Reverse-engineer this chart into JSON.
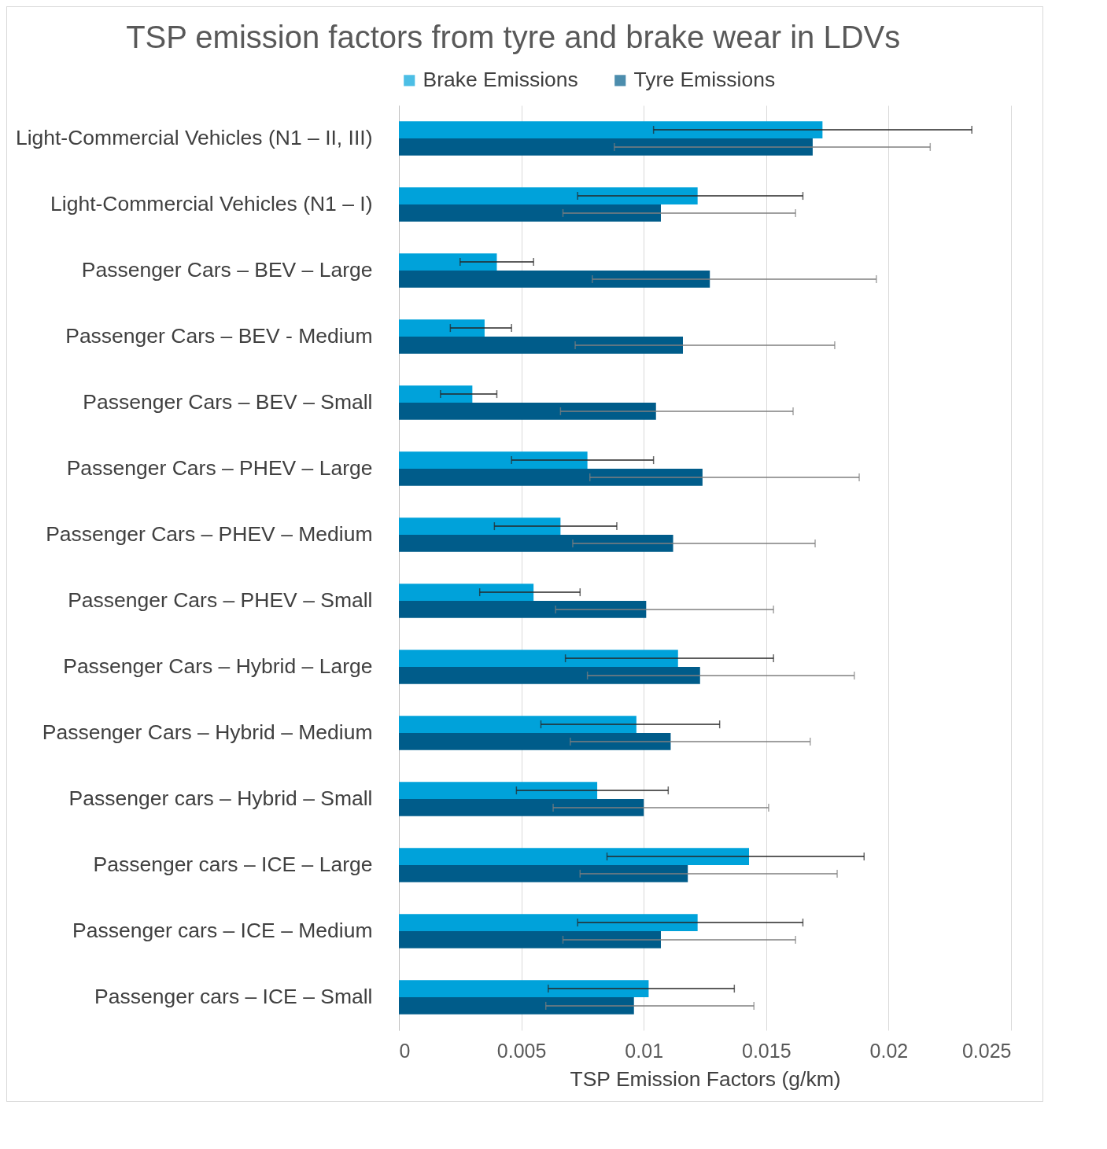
{
  "chart_data": {
    "type": "bar",
    "orientation": "horizontal",
    "title": "TSP emission factors from tyre and brake wear in LDVs",
    "xlabel": "TSP Emission Factors (g/km)",
    "categories": [
      "Light-Commercial Vehicles (N1 – II, III)",
      "Light-Commercial Vehicles (N1 – I)",
      "Passenger Cars – BEV – Large",
      "Passenger Cars – BEV - Medium",
      "Passenger Cars – BEV – Small",
      "Passenger Cars – PHEV – Large",
      "Passenger Cars – PHEV – Medium",
      "Passenger Cars – PHEV – Small",
      "Passenger Cars – Hybrid – Large",
      "Passenger Cars – Hybrid – Medium",
      "Passenger cars – Hybrid – Small",
      "Passenger cars – ICE – Large",
      "Passenger cars – ICE – Medium",
      "Passenger cars – ICE – Small"
    ],
    "series": [
      {
        "name": "Brake Emissions",
        "color": "#00a2da",
        "values": [
          0.0173,
          0.0122,
          0.004,
          0.0035,
          0.003,
          0.0077,
          0.0066,
          0.0055,
          0.0114,
          0.0097,
          0.0081,
          0.0143,
          0.0122,
          0.0102
        ],
        "errors": [
          [
            0.0104,
            0.0234
          ],
          [
            0.0073,
            0.0165
          ],
          [
            0.0025,
            0.0055
          ],
          [
            0.0021,
            0.0046
          ],
          [
            0.0017,
            0.004
          ],
          [
            0.0046,
            0.0104
          ],
          [
            0.0039,
            0.0089
          ],
          [
            0.0033,
            0.0074
          ],
          [
            0.0068,
            0.0153
          ],
          [
            0.0058,
            0.0131
          ],
          [
            0.0048,
            0.011
          ],
          [
            0.0085,
            0.019
          ],
          [
            0.0073,
            0.0165
          ],
          [
            0.0061,
            0.0137
          ]
        ]
      },
      {
        "name": "Tyre Emissions",
        "color": "#005c8a",
        "values": [
          0.0169,
          0.0107,
          0.0127,
          0.0116,
          0.0105,
          0.0124,
          0.0112,
          0.0101,
          0.0123,
          0.0111,
          0.01,
          0.0118,
          0.0107,
          0.0096
        ],
        "errors": [
          [
            0.0088,
            0.0217
          ],
          [
            0.0067,
            0.0162
          ],
          [
            0.0079,
            0.0195
          ],
          [
            0.0072,
            0.0178
          ],
          [
            0.0066,
            0.0161
          ],
          [
            0.0078,
            0.0188
          ],
          [
            0.0071,
            0.017
          ],
          [
            0.0064,
            0.0153
          ],
          [
            0.0077,
            0.0186
          ],
          [
            0.007,
            0.0168
          ],
          [
            0.0063,
            0.0151
          ],
          [
            0.0074,
            0.0179
          ],
          [
            0.0067,
            0.0162
          ],
          [
            0.006,
            0.0145
          ]
        ]
      }
    ],
    "xlim": [
      0,
      0.025
    ],
    "xticks": [
      0,
      0.005,
      0.01,
      0.015,
      0.02,
      0.025
    ],
    "grid": "x",
    "legend": "top"
  }
}
